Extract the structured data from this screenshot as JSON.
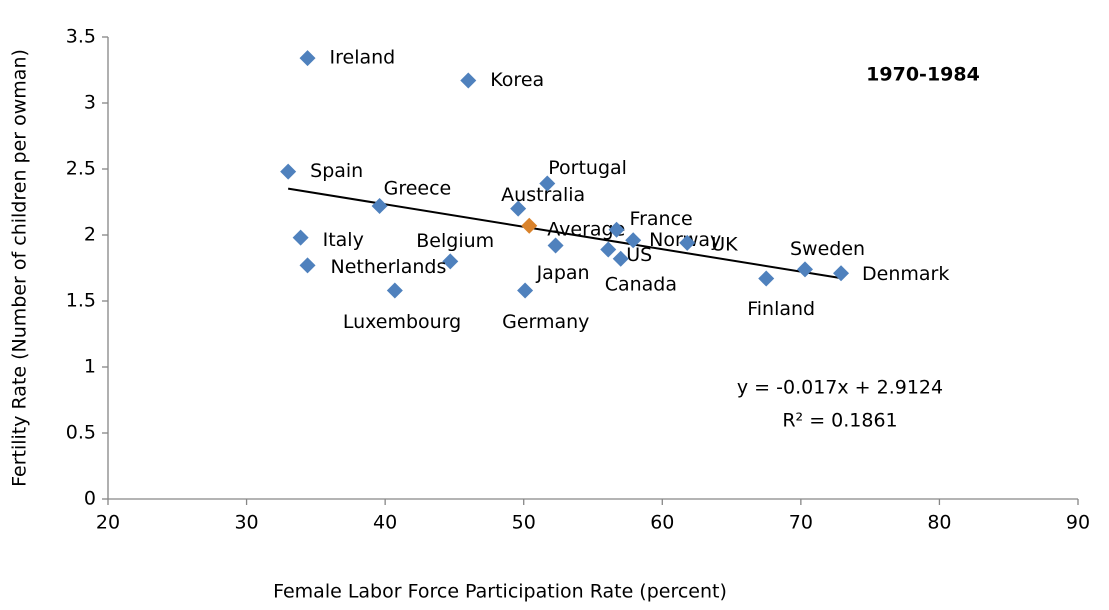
{
  "chart_data": {
    "type": "scatter",
    "x_label": "Female Labor Force Participation Rate (percent)",
    "y_label": "Fertility Rate (Number of children per owman)",
    "annotation": "1970-1984",
    "points": [
      {
        "label": "Ireland",
        "x": 34.4,
        "y": 3.34
      },
      {
        "label": "Korea",
        "x": 46.0,
        "y": 3.17
      },
      {
        "label": "Spain",
        "x": 33.0,
        "y": 2.48
      },
      {
        "label": "Portugal",
        "x": 51.7,
        "y": 2.39
      },
      {
        "label": "Greece",
        "x": 39.6,
        "y": 2.22
      },
      {
        "label": "Australia",
        "x": 49.6,
        "y": 2.2
      },
      {
        "label": "Average",
        "x": 50.4,
        "y": 2.07
      },
      {
        "label": "France",
        "x": 56.7,
        "y": 2.04
      },
      {
        "label": "Italy",
        "x": 33.9,
        "y": 1.98
      },
      {
        "label": "Norway",
        "x": 57.9,
        "y": 1.96
      },
      {
        "label": "UK",
        "x": 61.8,
        "y": 1.94
      },
      {
        "label": "Japan",
        "x": 52.3,
        "y": 1.92
      },
      {
        "label": "US",
        "x": 56.1,
        "y": 1.89
      },
      {
        "label": "Canada",
        "x": 57.0,
        "y": 1.82
      },
      {
        "label": "Belgium",
        "x": 44.7,
        "y": 1.8
      },
      {
        "label": "Netherlands",
        "x": 34.4,
        "y": 1.77
      },
      {
        "label": "Finland",
        "x": 67.5,
        "y": 1.67
      },
      {
        "label": "Sweden",
        "x": 70.3,
        "y": 1.74
      },
      {
        "label": "Denmark",
        "x": 72.9,
        "y": 1.71
      },
      {
        "label": "Luxembourg",
        "x": 40.7,
        "y": 1.58
      },
      {
        "label": "Germany",
        "x": 50.1,
        "y": 1.58
      }
    ],
    "color": "#4f81bd",
    "highlight_index": 6,
    "highlight_color": "#d9822b",
    "trendline": {
      "slope": -0.017,
      "intercept": 2.9124,
      "color": "#000000",
      "equation": "y = -0.017x + 2.9124",
      "r2_label": "R² = 0.1861"
    },
    "xlim": [
      20,
      90
    ],
    "xticks": [
      20,
      30,
      40,
      50,
      60,
      70,
      80,
      90
    ],
    "ylim": [
      0,
      3.5
    ],
    "yticks": [
      0,
      0.5,
      1,
      1.5,
      2,
      2.5,
      3,
      3.5
    ],
    "grid": false
  }
}
